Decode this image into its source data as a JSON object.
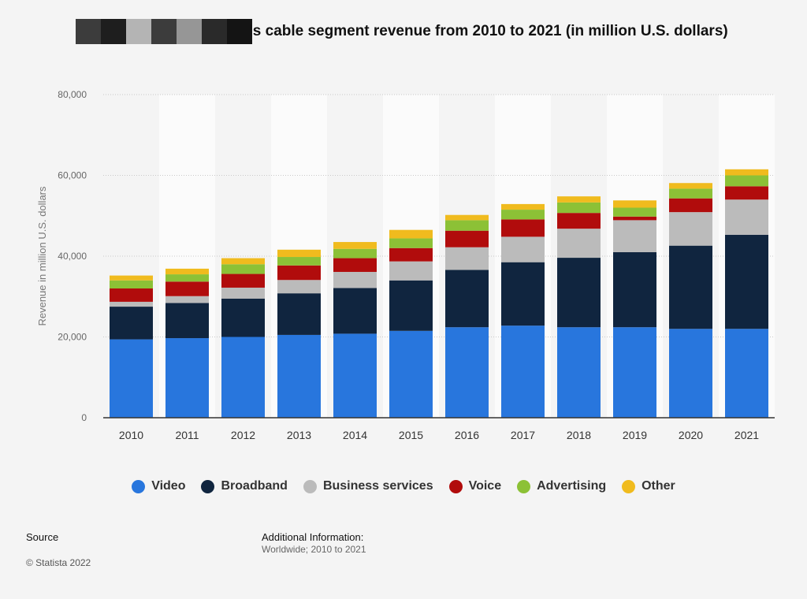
{
  "chart_data": {
    "type": "bar",
    "stacked": true,
    "title": "'s cable segment revenue from 2010 to 2021 (in million U.S. dollars)",
    "ylabel": "Revenue in million U.S. dollars",
    "xlabel": "",
    "ylim": [
      0,
      80000
    ],
    "yticks": [
      0,
      20000,
      40000,
      60000,
      80000
    ],
    "ytick_labels": [
      "0",
      "20,000",
      "40,000",
      "60,000",
      "80,000"
    ],
    "grid": true,
    "legend_position": "bottom",
    "categories": [
      "2010",
      "2011",
      "2012",
      "2013",
      "2014",
      "2015",
      "2016",
      "2017",
      "2018",
      "2019",
      "2020",
      "2021"
    ],
    "series": [
      {
        "name": "Video",
        "color": "#2876dd",
        "values": [
          19400,
          19700,
          20000,
          20500,
          20800,
          21500,
          22400,
          22800,
          22400,
          22400,
          22000,
          22000
        ]
      },
      {
        "name": "Broadband",
        "color": "#10253f",
        "values": [
          8100,
          8700,
          9500,
          10300,
          11300,
          12500,
          14200,
          15700,
          17200,
          18600,
          20600,
          23300
        ]
      },
      {
        "name": "Business services",
        "color": "#bbbbbb",
        "values": [
          1200,
          1700,
          2700,
          3300,
          4000,
          4700,
          5600,
          6300,
          7200,
          7900,
          8300,
          8700
        ]
      },
      {
        "name": "Voice",
        "color": "#b10c0c",
        "values": [
          3300,
          3600,
          3400,
          3600,
          3400,
          3300,
          4100,
          4300,
          3900,
          900,
          3400,
          3300
        ]
      },
      {
        "name": "Advertising",
        "color": "#8cc136",
        "values": [
          2000,
          1800,
          2400,
          2100,
          2300,
          2400,
          2600,
          2400,
          2600,
          2200,
          2400,
          2700
        ]
      },
      {
        "name": "Other",
        "color": "#f0bb1e",
        "values": [
          1200,
          1400,
          1500,
          1800,
          1700,
          2100,
          1300,
          1400,
          1500,
          1800,
          1400,
          1500
        ]
      }
    ]
  },
  "footer": {
    "source_label": "Source",
    "copyright": "© Statista 2022",
    "additional_title": "Additional Information:",
    "additional_text": "Worldwide; 2010 to 2021"
  }
}
